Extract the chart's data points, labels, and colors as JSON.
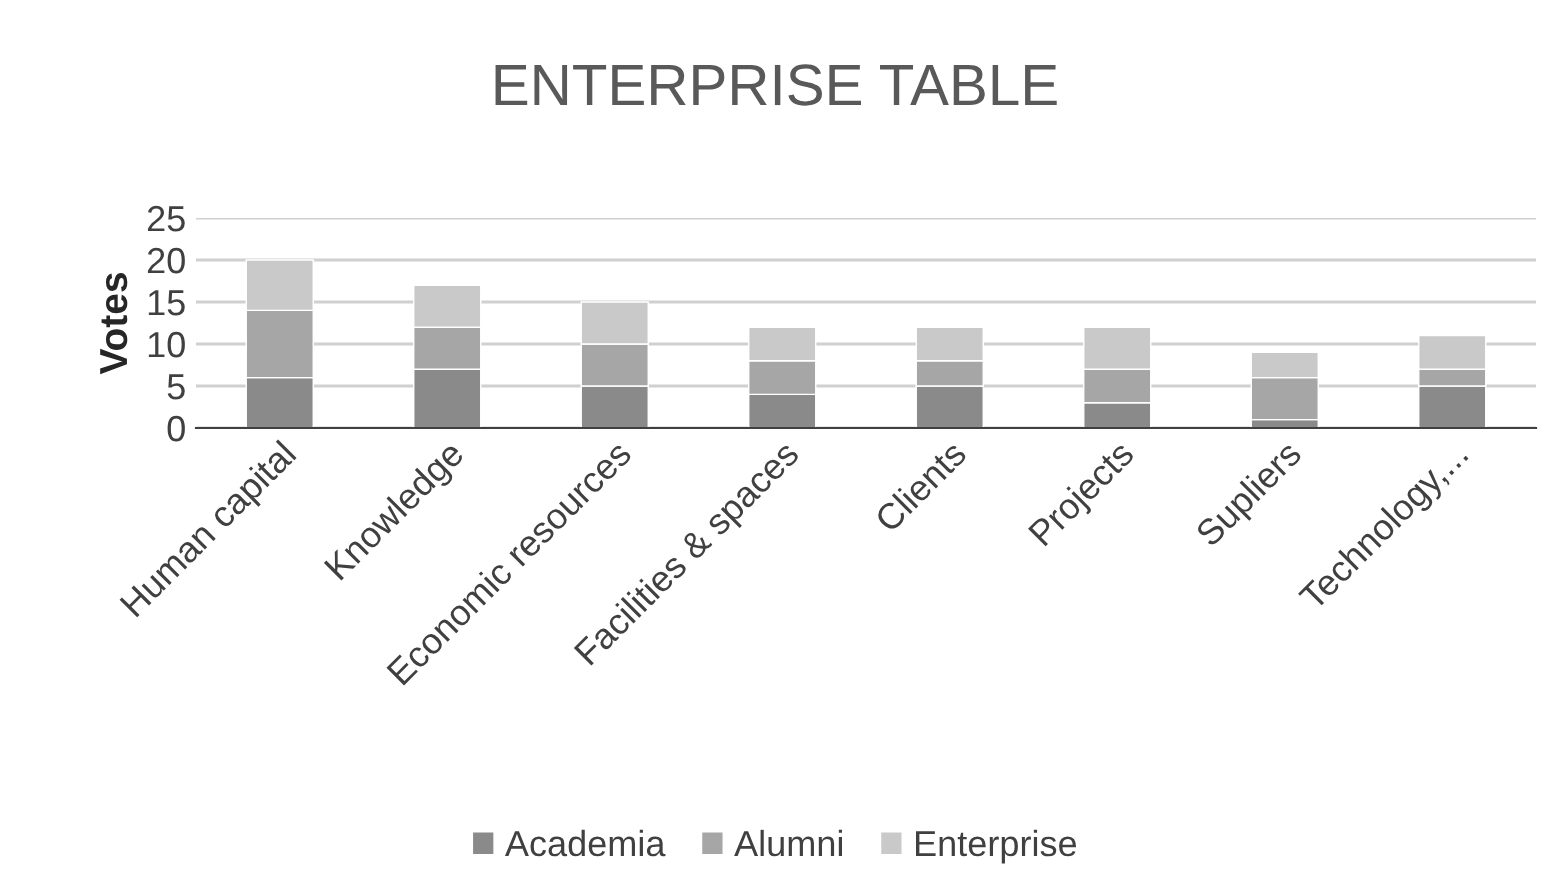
{
  "chart_data": {
    "type": "bar",
    "title": "ENTERPRISE TABLE",
    "ylabel": "Votes",
    "stacked": true,
    "categories": [
      "Human capital",
      "Knowledge",
      "Economic resources",
      "Facilities & spaces",
      "Clients",
      "Projects",
      "Supliers",
      "Technology,..."
    ],
    "series": [
      {
        "name": "Academia",
        "color": "#8a8a8a",
        "values": [
          6,
          7,
          5,
          4,
          5,
          3,
          1,
          5
        ]
      },
      {
        "name": "Alumni",
        "color": "#a6a6a6",
        "values": [
          8,
          5,
          5,
          4,
          3,
          4,
          5,
          2
        ]
      },
      {
        "name": "Enterprise",
        "color": "#c9c9c9",
        "values": [
          6,
          5,
          5,
          4,
          4,
          5,
          3,
          4
        ]
      }
    ],
    "ylim": [
      0,
      25
    ],
    "yticks": [
      0,
      5,
      10,
      15,
      20,
      25
    ],
    "grid": "y",
    "legend": "bottom"
  }
}
